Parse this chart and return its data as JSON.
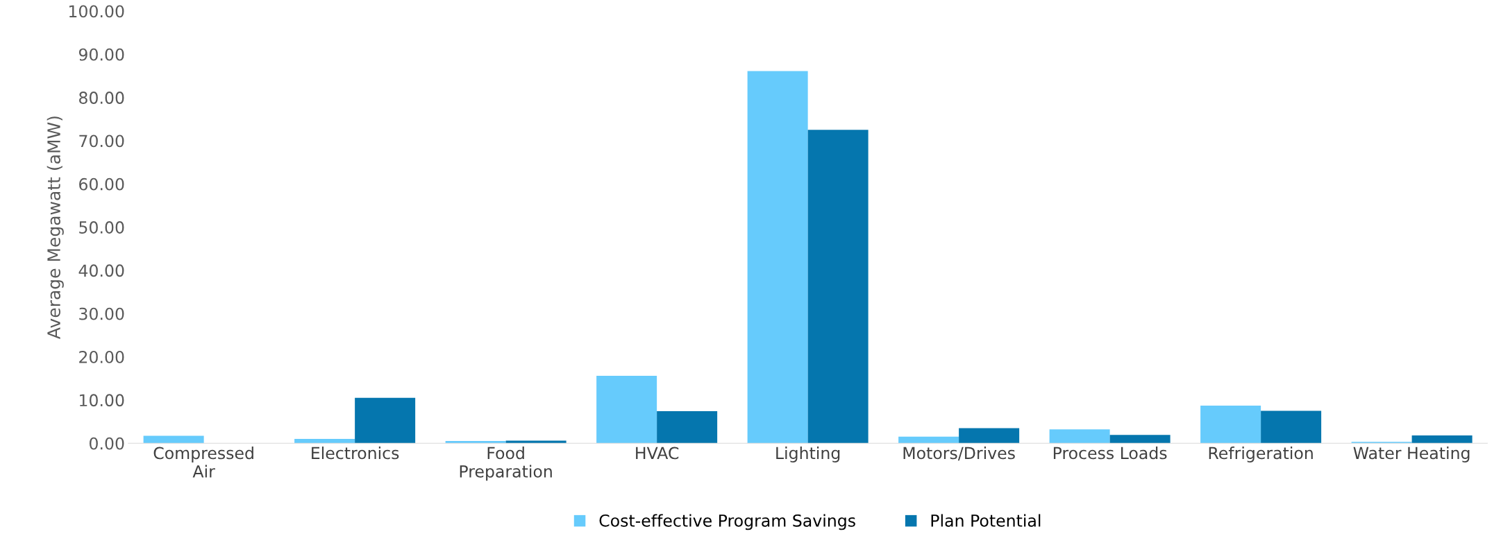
{
  "chart_data": {
    "type": "bar",
    "ylabel": "Average Megawatt (aMW)",
    "categories": [
      "Compressed\nAir",
      "Electronics",
      "Food\nPreparation",
      "HVAC",
      "Lighting",
      "Motors/Drives",
      "Process Loads",
      "Refrigeration",
      "Water Heating"
    ],
    "series": [
      {
        "name": "Cost-effective Program Savings",
        "color": "#66cbfc",
        "values": [
          1.7,
          1.0,
          0.5,
          15.6,
          86.1,
          1.5,
          3.2,
          8.7,
          0.3
        ]
      },
      {
        "name": "Plan Potential",
        "color": "#0576ae",
        "values": [
          0,
          10.5,
          0.6,
          7.4,
          72.5,
          3.5,
          1.9,
          7.5,
          1.8
        ]
      }
    ],
    "ylim": [
      0,
      100
    ],
    "yticks": [
      {
        "value": 0,
        "label": "0.00"
      },
      {
        "value": 10,
        "label": "10.00"
      },
      {
        "value": 20,
        "label": "20.00"
      },
      {
        "value": 30,
        "label": "30.00"
      },
      {
        "value": 40,
        "label": "40.00"
      },
      {
        "value": 50,
        "label": "50.00"
      },
      {
        "value": 60,
        "label": "60.00"
      },
      {
        "value": 70,
        "label": "70.00"
      },
      {
        "value": 80,
        "label": "80.00"
      },
      {
        "value": 90,
        "label": "90.00"
      },
      {
        "value": 100,
        "label": "100.00"
      }
    ],
    "grid": false,
    "legend": "bottom"
  }
}
